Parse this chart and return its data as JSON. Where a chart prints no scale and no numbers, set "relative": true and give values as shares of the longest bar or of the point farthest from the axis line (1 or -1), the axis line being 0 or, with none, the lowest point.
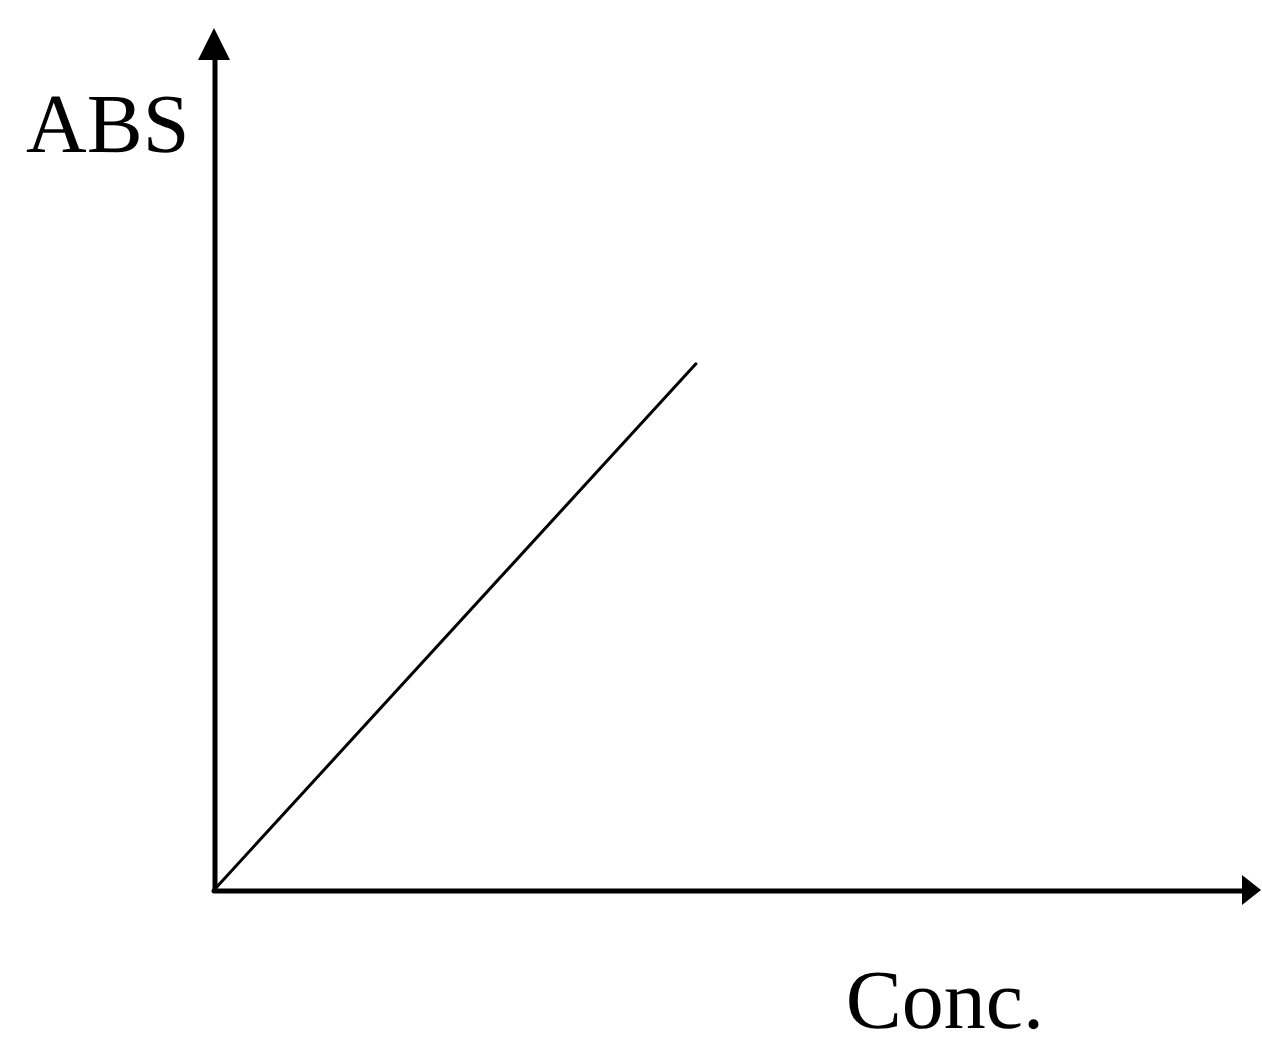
{
  "chart_data": {
    "type": "line",
    "relative": true,
    "xlabel": "Conc.",
    "ylabel": "ABS",
    "categories": [
      null,
      null
    ],
    "series": [
      {
        "color": "#000000",
        "values": [
          0,
          1
        ]
      }
    ],
    "marker": "none",
    "line_style": "solid"
  }
}
